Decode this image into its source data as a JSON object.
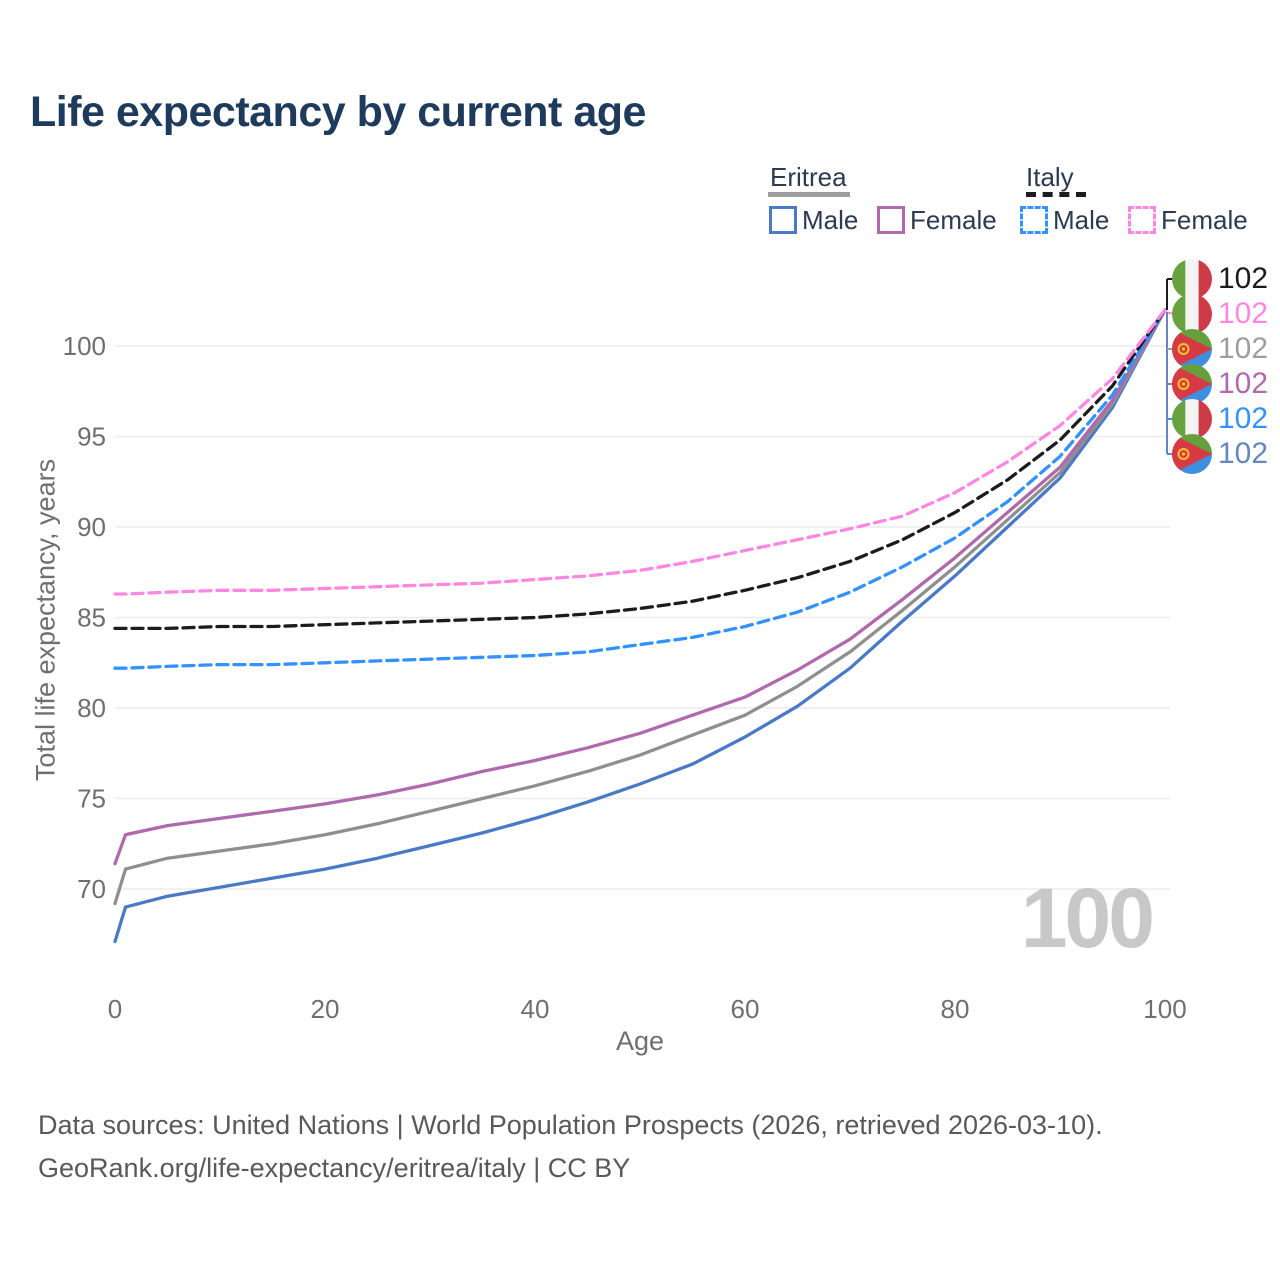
{
  "title": "Life expectancy by current age",
  "legend": {
    "groups": [
      {
        "label": "Eritrea",
        "line_style": "solid",
        "underline_color": "#9e9e9e",
        "items": [
          {
            "label": "Male",
            "color": "#4a79c6"
          },
          {
            "label": "Female",
            "color": "#b069ac"
          }
        ]
      },
      {
        "label": "Italy",
        "line_style": "dashed",
        "underline_color": "#1c1c1c",
        "items": [
          {
            "label": "Male",
            "color": "#3392ff"
          },
          {
            "label": "Female",
            "color": "#ff87e1"
          }
        ]
      }
    ]
  },
  "chart_data": {
    "type": "line",
    "title": "Life expectancy by current age",
    "xlabel": "Age",
    "ylabel": "Total life expectancy, years",
    "x_ticks": [
      0,
      20,
      40,
      60,
      80,
      100
    ],
    "y_ticks": [
      70,
      75,
      80,
      85,
      90,
      95,
      100
    ],
    "xlim": [
      0,
      100
    ],
    "ylim": [
      67,
      103.5
    ],
    "grid": "horizontal",
    "legend_position": "top-right",
    "x": [
      0,
      1,
      5,
      10,
      15,
      20,
      25,
      30,
      35,
      40,
      45,
      50,
      55,
      60,
      65,
      70,
      75,
      80,
      85,
      90,
      95,
      100
    ],
    "series": [
      {
        "id": "eritrea-male",
        "name": "Eritrea Male",
        "color": "#4a79c6",
        "dashed": false,
        "values": [
          67.1,
          69.0,
          69.6,
          70.1,
          70.6,
          71.1,
          71.7,
          72.4,
          73.1,
          73.9,
          74.8,
          75.8,
          76.9,
          78.4,
          80.1,
          82.2,
          84.8,
          87.3,
          90.0,
          92.7,
          96.6,
          102
        ]
      },
      {
        "id": "eritrea-overall",
        "name": "Eritrea",
        "color": "#8f8f8f",
        "dashed": false,
        "values": [
          69.2,
          71.1,
          71.7,
          72.1,
          72.5,
          73.0,
          73.6,
          74.3,
          75.0,
          75.7,
          76.5,
          77.4,
          78.5,
          79.6,
          81.2,
          83.1,
          85.4,
          87.8,
          90.4,
          93.0,
          96.8,
          102
        ]
      },
      {
        "id": "eritrea-female",
        "name": "Eritrea Female",
        "color": "#b069ac",
        "dashed": false,
        "values": [
          71.4,
          73.0,
          73.5,
          73.9,
          74.3,
          74.7,
          75.2,
          75.8,
          76.5,
          77.1,
          77.8,
          78.6,
          79.6,
          80.6,
          82.1,
          83.8,
          86.0,
          88.3,
          90.8,
          93.3,
          97.0,
          102
        ]
      },
      {
        "id": "italy-male",
        "name": "Italy Male",
        "color": "#3392ff",
        "dashed": true,
        "values": [
          82.2,
          82.2,
          82.3,
          82.4,
          82.4,
          82.5,
          82.6,
          82.7,
          82.8,
          82.9,
          83.1,
          83.5,
          83.9,
          84.5,
          85.3,
          86.4,
          87.8,
          89.4,
          91.4,
          93.9,
          97.3,
          102
        ]
      },
      {
        "id": "italy-overall",
        "name": "Italy",
        "color": "#1c1c1c",
        "dashed": true,
        "values": [
          84.4,
          84.4,
          84.4,
          84.5,
          84.5,
          84.6,
          84.7,
          84.8,
          84.9,
          85.0,
          85.2,
          85.5,
          85.9,
          86.5,
          87.2,
          88.1,
          89.3,
          90.8,
          92.6,
          94.8,
          97.8,
          102
        ]
      },
      {
        "id": "italy-female",
        "name": "Italy Female",
        "color": "#ff87e1",
        "dashed": true,
        "values": [
          86.3,
          86.3,
          86.4,
          86.5,
          86.5,
          86.6,
          86.7,
          86.8,
          86.9,
          87.1,
          87.3,
          87.6,
          88.1,
          88.7,
          89.3,
          89.9,
          90.6,
          91.9,
          93.6,
          95.6,
          98.2,
          102
        ]
      }
    ],
    "end_value_labels": [
      {
        "value": "102",
        "color": "#1c1c1c",
        "flag": "italy",
        "series": "Italy"
      },
      {
        "value": "102",
        "color": "#ff87e1",
        "flag": "italy",
        "series": "Italy Female"
      },
      {
        "value": "102",
        "color": "#9e9e9e",
        "flag": "eritrea",
        "series": "Eritrea"
      },
      {
        "value": "102",
        "color": "#b069ac",
        "flag": "eritrea",
        "series": "Eritrea Female"
      },
      {
        "value": "102",
        "color": "#3392ff",
        "flag": "italy",
        "series": "Italy Male"
      },
      {
        "value": "102",
        "color": "#6486c2",
        "flag": "eritrea",
        "series": "Eritrea Male"
      }
    ],
    "watermark": "100"
  },
  "colors": {
    "title": "#1e3a5c",
    "axis_text": "#6f6f6f",
    "gridline": "#ececec",
    "watermark": "#c8c8c8",
    "footer_text": "#595959",
    "connector_vertical": "#6486c2"
  },
  "footer": {
    "line1": "Data sources: United Nations | World Population Prospects (2026, retrieved 2026-03-10).",
    "line2": "GeoRank.org/life-expectancy/eritrea/italy | CC BY"
  }
}
